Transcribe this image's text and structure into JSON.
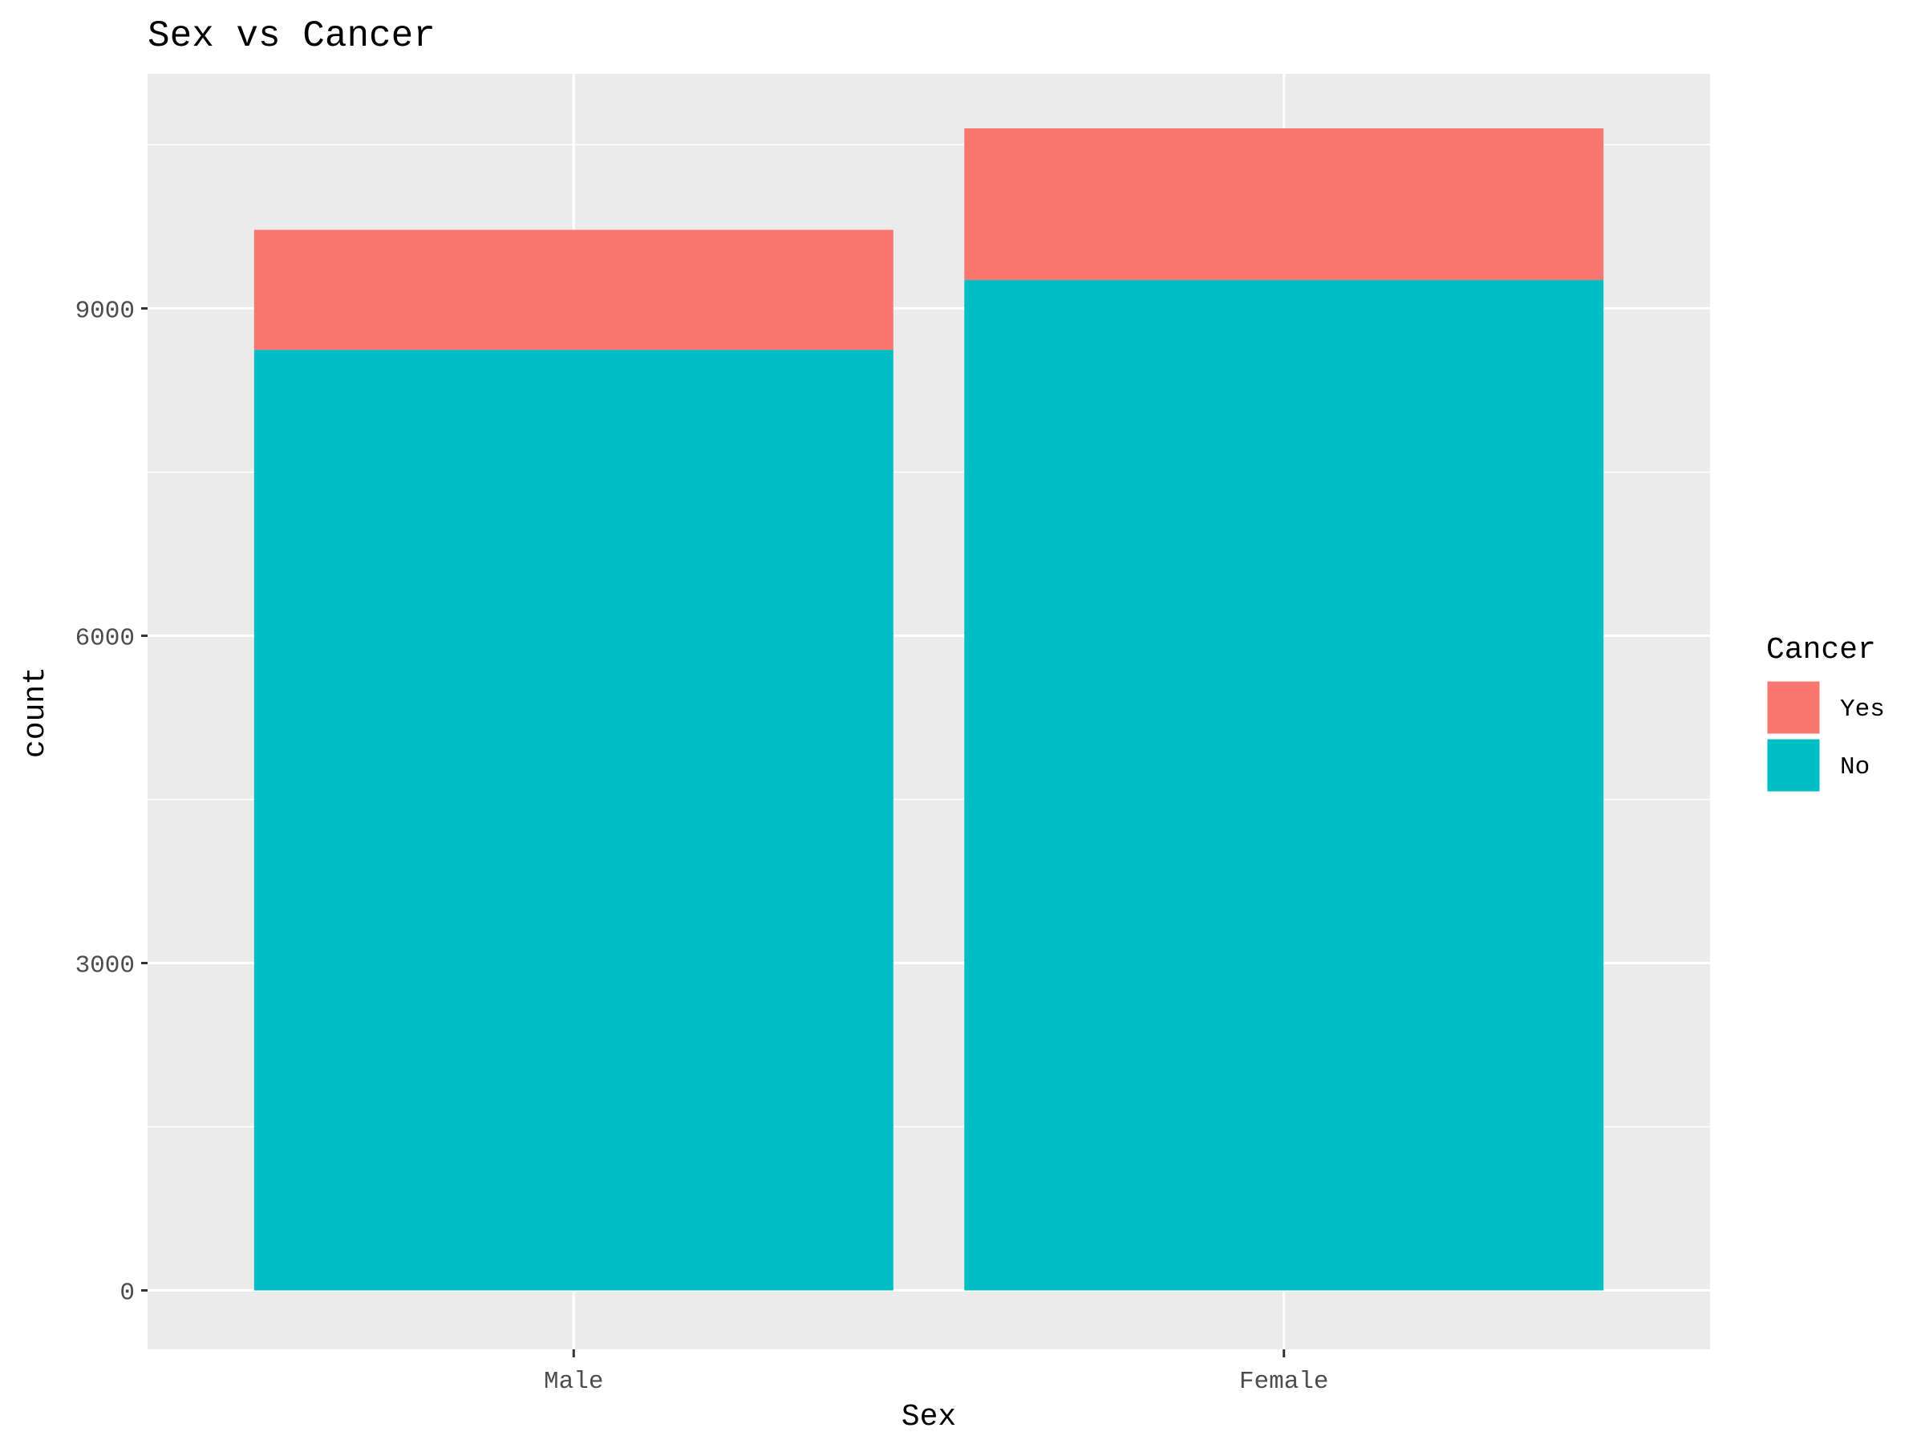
{
  "chart_data": {
    "type": "bar",
    "stacked": true,
    "title": "Sex vs Cancer",
    "xlabel": "Sex",
    "ylabel": "count",
    "categories": [
      "Male",
      "Female"
    ],
    "series": [
      {
        "name": "Yes",
        "values": [
          1100,
          1390
        ],
        "color": "#F8766D"
      },
      {
        "name": "No",
        "values": [
          8620,
          9260
        ],
        "color": "#00BFC4"
      }
    ],
    "ylim": [
      -540,
      11150
    ],
    "yticks": [
      0,
      3000,
      6000,
      9000
    ],
    "ytick_labels": [
      "0",
      "3000",
      "6000",
      "9000"
    ],
    "grid": true,
    "legend": {
      "title": "Cancer",
      "position": "right"
    },
    "panel_color": "#EBEBEB",
    "grid_color": "#FFFFFF"
  }
}
